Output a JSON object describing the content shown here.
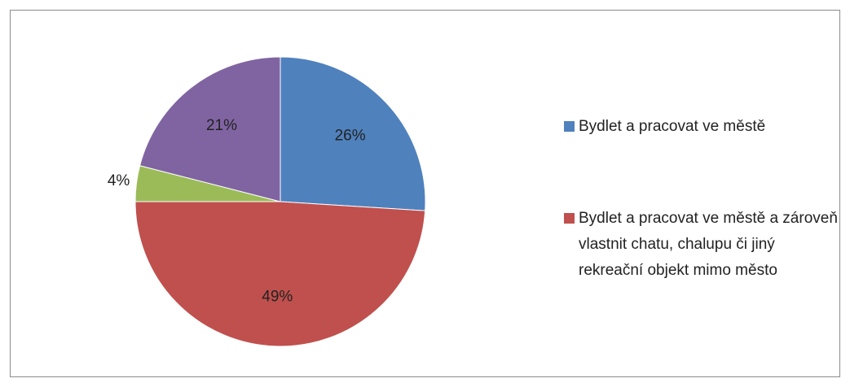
{
  "chart_data": {
    "type": "pie",
    "categories": [
      "Bydlet a pracovat ve městě",
      "Bydlet a pracovat ve městě a zároveň vlastnit chatu, chalupu či jiný rekreační objekt mimo město",
      null,
      null
    ],
    "values": [
      26,
      49,
      4,
      21
    ],
    "value_labels": [
      "26%",
      "49%",
      "4%",
      "21%"
    ],
    "colors": [
      "#4f81bd",
      "#c0504d",
      "#9bbb59",
      "#8064a2"
    ],
    "legend": "right"
  }
}
